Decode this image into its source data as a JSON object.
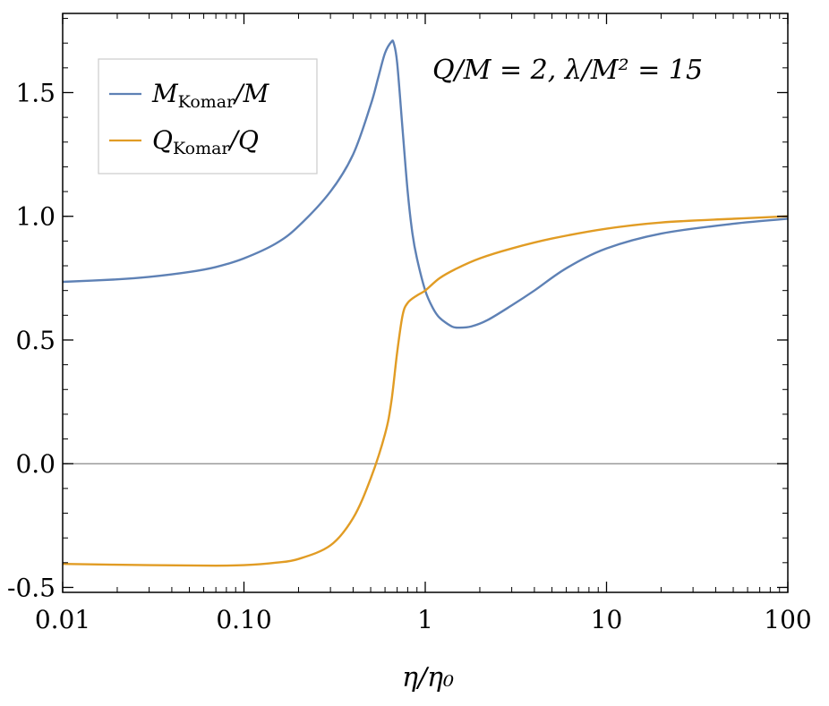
{
  "chart_data": {
    "type": "line",
    "x_scale": "log",
    "xlabel": "η/η₀",
    "ylabel": "",
    "xlim": [
      0.01,
      100
    ],
    "ylim": [
      -0.52,
      1.82
    ],
    "grid": false,
    "legend_position": "top-left",
    "annotation": "Q/M = 2, λ/M² = 15",
    "x_ticks": [
      {
        "value": 0.01,
        "label": "0.01"
      },
      {
        "value": 0.1,
        "label": "0.10"
      },
      {
        "value": 1,
        "label": "1"
      },
      {
        "value": 10,
        "label": "10"
      },
      {
        "value": 100,
        "label": "100"
      }
    ],
    "y_ticks": [
      {
        "value": -0.5,
        "label": "-0.5"
      },
      {
        "value": 0.0,
        "label": "0.0"
      },
      {
        "value": 0.5,
        "label": "0.5"
      },
      {
        "value": 1.0,
        "label": "1.0"
      },
      {
        "value": 1.5,
        "label": "1.5"
      }
    ],
    "reference_line": {
      "y": 0,
      "color": "#8a8a8a"
    },
    "series": [
      {
        "name": "M_Komar/M",
        "legend_main": "M",
        "legend_sub": "Komar",
        "legend_tail": "/M",
        "color": "#5e81b5",
        "points": [
          [
            0.01,
            0.735
          ],
          [
            0.02,
            0.745
          ],
          [
            0.03,
            0.755
          ],
          [
            0.05,
            0.775
          ],
          [
            0.07,
            0.795
          ],
          [
            0.1,
            0.83
          ],
          [
            0.15,
            0.89
          ],
          [
            0.2,
            0.96
          ],
          [
            0.3,
            1.1
          ],
          [
            0.4,
            1.25
          ],
          [
            0.5,
            1.45
          ],
          [
            0.55,
            1.56
          ],
          [
            0.6,
            1.66
          ],
          [
            0.65,
            1.705
          ],
          [
            0.67,
            1.7
          ],
          [
            0.7,
            1.62
          ],
          [
            0.75,
            1.35
          ],
          [
            0.8,
            1.1
          ],
          [
            0.85,
            0.93
          ],
          [
            0.9,
            0.83
          ],
          [
            1.0,
            0.7
          ],
          [
            1.1,
            0.63
          ],
          [
            1.2,
            0.59
          ],
          [
            1.4,
            0.555
          ],
          [
            1.55,
            0.55
          ],
          [
            1.8,
            0.555
          ],
          [
            2.2,
            0.58
          ],
          [
            3.0,
            0.64
          ],
          [
            4.0,
            0.7
          ],
          [
            6.0,
            0.79
          ],
          [
            10,
            0.87
          ],
          [
            20,
            0.93
          ],
          [
            50,
            0.97
          ],
          [
            100,
            0.99
          ]
        ]
      },
      {
        "name": "Q_Komar/Q",
        "legend_main": "Q",
        "legend_sub": "Komar",
        "legend_tail": "/Q",
        "color": "#e19c24",
        "points": [
          [
            0.01,
            -0.405
          ],
          [
            0.03,
            -0.41
          ],
          [
            0.07,
            -0.412
          ],
          [
            0.1,
            -0.41
          ],
          [
            0.15,
            -0.4
          ],
          [
            0.2,
            -0.385
          ],
          [
            0.3,
            -0.33
          ],
          [
            0.4,
            -0.22
          ],
          [
            0.5,
            -0.06
          ],
          [
            0.6,
            0.12
          ],
          [
            0.65,
            0.25
          ],
          [
            0.7,
            0.45
          ],
          [
            0.75,
            0.6
          ],
          [
            0.8,
            0.65
          ],
          [
            0.9,
            0.68
          ],
          [
            1.0,
            0.7
          ],
          [
            1.2,
            0.75
          ],
          [
            1.5,
            0.79
          ],
          [
            2.0,
            0.83
          ],
          [
            3.0,
            0.87
          ],
          [
            5.0,
            0.91
          ],
          [
            10,
            0.95
          ],
          [
            20,
            0.975
          ],
          [
            50,
            0.99
          ],
          [
            100,
            1.0
          ]
        ]
      }
    ]
  }
}
